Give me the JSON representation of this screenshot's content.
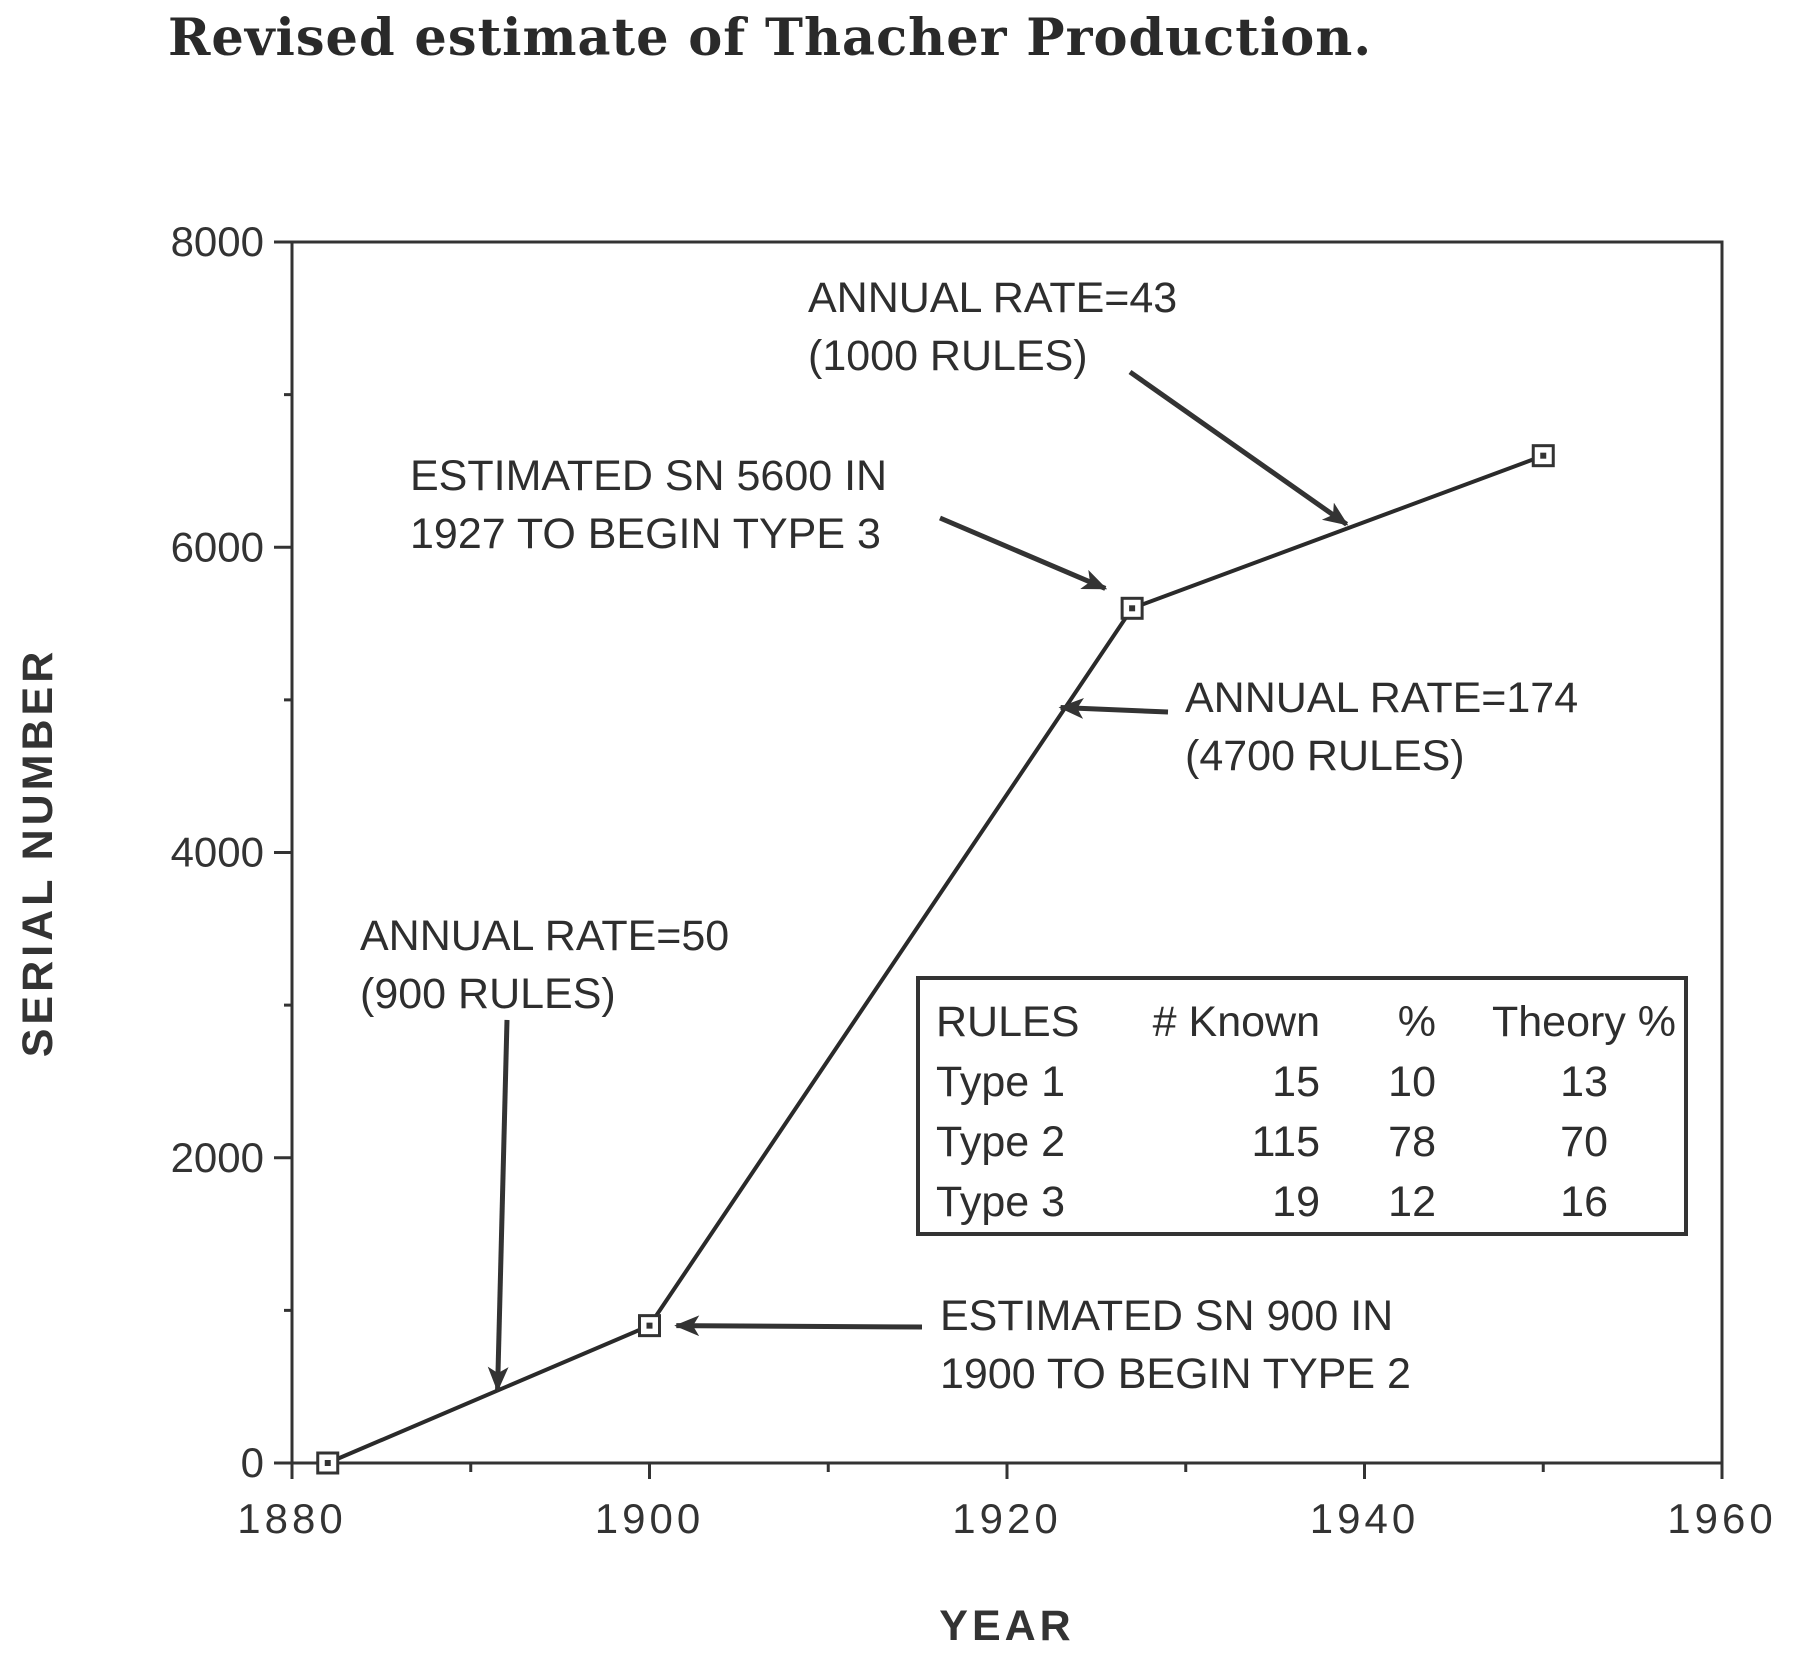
{
  "page_title": "Revised estimate of Thacher Production.",
  "chart_data": {
    "type": "line",
    "title": "",
    "xlabel": "YEAR",
    "ylabel": "SERIAL NUMBER",
    "xlim": [
      1880,
      1960
    ],
    "ylim": [
      0,
      8000
    ],
    "x_ticks": [
      1880,
      1900,
      1920,
      1940,
      1960
    ],
    "y_ticks": [
      0,
      2000,
      4000,
      6000,
      8000
    ],
    "x_minor_step": 10,
    "y_minor_step": 1000,
    "grid": false,
    "series": [
      {
        "x": [
          1882,
          1900,
          1927,
          1950
        ],
        "y": [
          0,
          900,
          5600,
          6600
        ],
        "marker": "open-square"
      }
    ],
    "annotations": [
      {
        "lines": [
          "ANNUAL RATE=43",
          "(1000 RULES)"
        ],
        "arrow_to": [
          1939,
          6150
        ]
      },
      {
        "lines": [
          "ESTIMATED SN 5600 IN",
          "1927 TO BEGIN TYPE 3"
        ],
        "arrow_to": [
          1925.5,
          5730
        ]
      },
      {
        "lines": [
          "ANNUAL RATE=174",
          "(4700 RULES)"
        ],
        "arrow_to": [
          1923,
          4950
        ]
      },
      {
        "lines": [
          "ANNUAL RATE=50",
          "(900 RULES)"
        ],
        "arrow_to": [
          1891.5,
          480
        ]
      },
      {
        "lines": [
          "ESTIMATED SN 900 IN",
          "1900 TO BEGIN TYPE 2"
        ],
        "arrow_to": [
          1901.5,
          900
        ]
      }
    ],
    "table": {
      "headers": [
        "RULES",
        "# Known",
        "%",
        "Theory %"
      ],
      "rows": [
        [
          "Type 1",
          "15",
          "10",
          "13"
        ],
        [
          "Type 2",
          "115",
          "78",
          "70"
        ],
        [
          "Type 3",
          "19",
          "12",
          "16"
        ]
      ]
    }
  }
}
